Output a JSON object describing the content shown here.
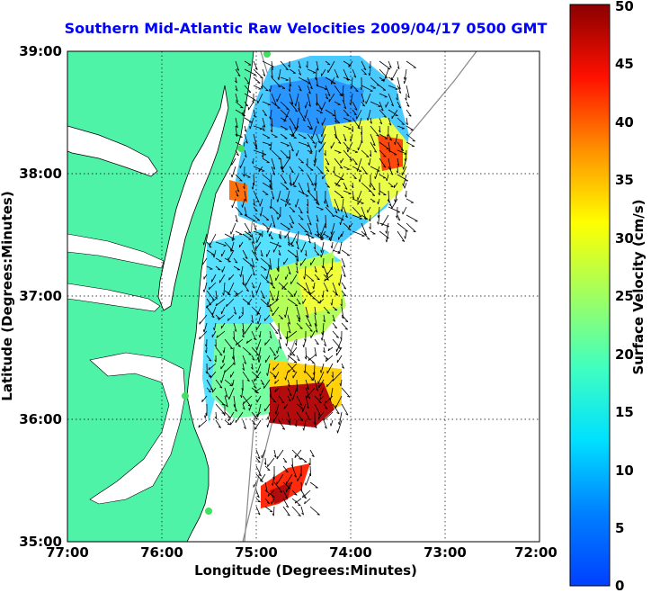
{
  "title": "Southern Mid-Atlantic Raw Velocities 2009/04/17 0500 GMT",
  "xlabel": "Longitude (Degrees:Minutes)",
  "ylabel": "Latitude (Degrees:Minutes)",
  "x_ticks": [
    "77:00",
    "76:00",
    "75:00",
    "74:00",
    "73:00",
    "72:00"
  ],
  "y_ticks": [
    "39:00",
    "38:00",
    "37:00",
    "36:00",
    "35:00"
  ],
  "colorbar": {
    "label": "Surface Velocity (cm/s)",
    "ticks": [
      "0",
      "5",
      "10",
      "15",
      "20",
      "25",
      "30",
      "35",
      "40",
      "45",
      "50"
    ],
    "range": [
      0,
      50
    ],
    "unit": "cm/s"
  },
  "colors": {
    "land": "#4ff3a8",
    "title": "#0000ff",
    "grid": "#000000"
  }
}
